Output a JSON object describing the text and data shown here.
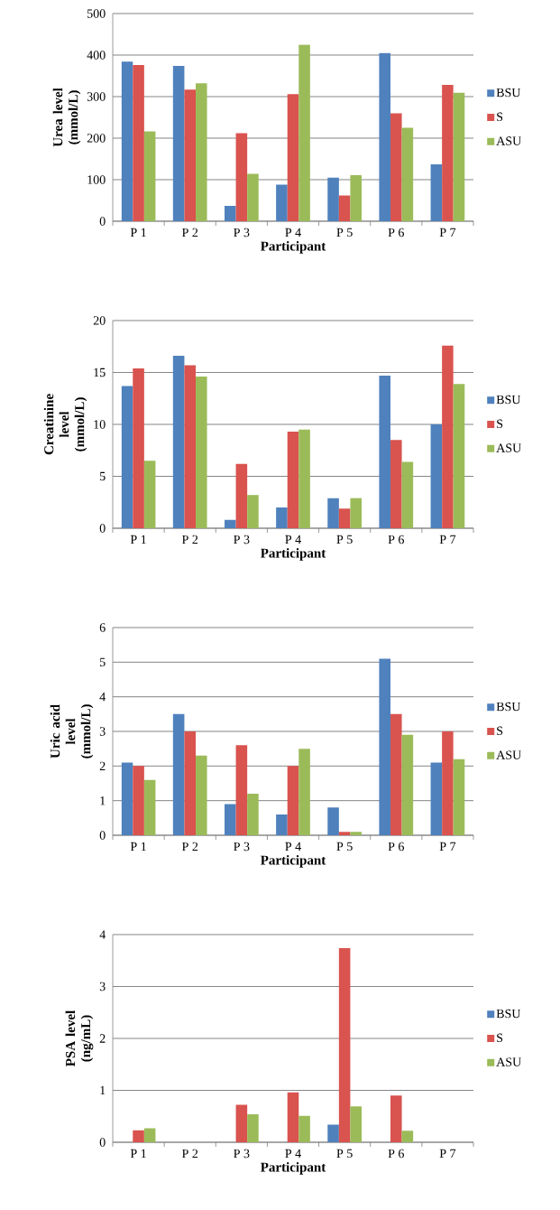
{
  "chart_data": [
    {
      "type": "bar",
      "categories": [
        "P 1",
        "P 2",
        "P 3",
        "P 4",
        "P 5",
        "P 6",
        "P 7"
      ],
      "xlabel": "Participant",
      "ylabel": "Urea level (mmol/L)",
      "ylim": [
        0,
        500
      ],
      "yticks": [
        0,
        100,
        200,
        300,
        400,
        500
      ],
      "grid": "y",
      "legend": "right",
      "series": [
        {
          "name": "BSU",
          "color": "#4f81bd",
          "values": [
            384,
            374,
            37,
            88,
            105,
            405,
            137
          ]
        },
        {
          "name": "S",
          "color": "#d9534f",
          "values": [
            376,
            317,
            212,
            306,
            62,
            260,
            328
          ]
        },
        {
          "name": "ASU",
          "color": "#9bbb59",
          "values": [
            216,
            332,
            114,
            425,
            111,
            225,
            309
          ]
        }
      ]
    },
    {
      "type": "bar",
      "categories": [
        "P 1",
        "P 2",
        "P 3",
        "P 4",
        "P 5",
        "P 6",
        "P 7"
      ],
      "xlabel": "Participant",
      "ylabel": "Creatinine level (mmol/L)",
      "ylim": [
        0,
        20
      ],
      "yticks": [
        0,
        5,
        10,
        15,
        20
      ],
      "grid": "y",
      "legend": "right",
      "series": [
        {
          "name": "BSU",
          "color": "#4f81bd",
          "values": [
            13.7,
            16.6,
            0.8,
            2.0,
            2.9,
            14.7,
            10.0
          ]
        },
        {
          "name": "S",
          "color": "#d9534f",
          "values": [
            15.4,
            15.7,
            6.2,
            9.3,
            1.9,
            8.5,
            17.6
          ]
        },
        {
          "name": "ASU",
          "color": "#9bbb59",
          "values": [
            6.5,
            14.6,
            3.2,
            9.5,
            2.9,
            6.4,
            13.9
          ]
        }
      ]
    },
    {
      "type": "bar",
      "categories": [
        "P 1",
        "P 2",
        "P 3",
        "P 4",
        "P 5",
        "P 6",
        "P 7"
      ],
      "xlabel": "Participant",
      "ylabel": "Uric acid level (mmol/L)",
      "ylim": [
        0,
        6
      ],
      "yticks": [
        0,
        1,
        2,
        3,
        4,
        5,
        6
      ],
      "grid": "y",
      "legend": "right",
      "series": [
        {
          "name": "BSU",
          "color": "#4f81bd",
          "values": [
            2.1,
            3.5,
            0.9,
            0.6,
            0.8,
            5.1,
            2.1
          ]
        },
        {
          "name": "S",
          "color": "#d9534f",
          "values": [
            2.0,
            3.0,
            2.6,
            2.0,
            0.1,
            3.5,
            3.0
          ]
        },
        {
          "name": "ASU",
          "color": "#9bbb59",
          "values": [
            1.6,
            2.3,
            1.2,
            2.5,
            0.1,
            2.9,
            2.2
          ]
        }
      ]
    },
    {
      "type": "bar",
      "categories": [
        "P 1",
        "P 2",
        "P 3",
        "P 4",
        "P 5",
        "P 6",
        "P 7"
      ],
      "xlabel": "Participant",
      "ylabel": "PSA level (ng/mL)",
      "ylim": [
        0,
        4
      ],
      "yticks": [
        0,
        1,
        2,
        3,
        4
      ],
      "grid": "y",
      "legend": "right",
      "series": [
        {
          "name": "BSU",
          "color": "#4f81bd",
          "values": [
            0,
            0,
            0,
            0,
            0.34,
            0,
            0
          ]
        },
        {
          "name": "S",
          "color": "#d9534f",
          "values": [
            0.23,
            0,
            0.72,
            0.96,
            3.74,
            0.9,
            0
          ]
        },
        {
          "name": "ASU",
          "color": "#9bbb59",
          "values": [
            0.27,
            0,
            0.54,
            0.51,
            0.69,
            0.22,
            0
          ]
        }
      ]
    }
  ]
}
